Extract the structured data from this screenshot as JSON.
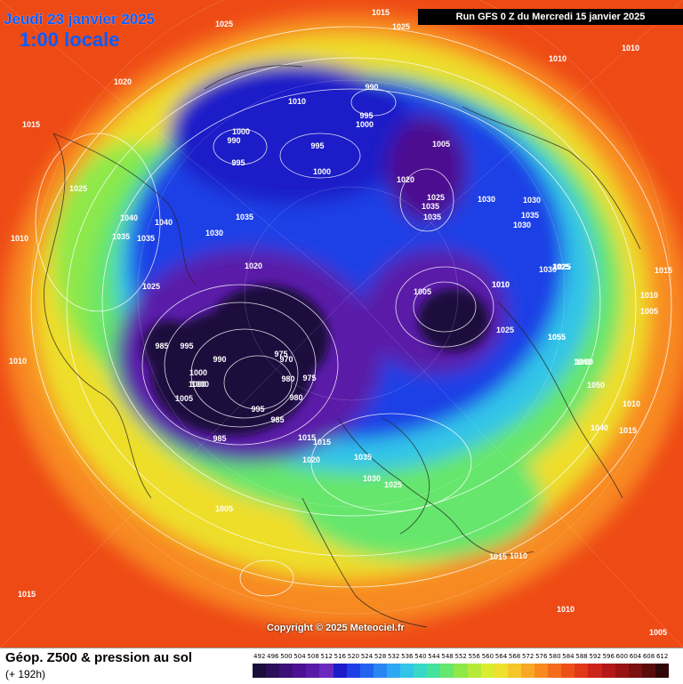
{
  "header": {
    "date": "Jeudi 23 janvier 2025",
    "local_time": "1:00 locale",
    "run": "Run GFS 0 Z du Mercredi 15 janvier 2025"
  },
  "copyright": "Copyright © 2025 Meteociel.fr",
  "footer": {
    "title": "Géop. Z500 & pression au sol",
    "subtitle": "(+ 192h)"
  },
  "scale": {
    "labels": [
      "492",
      "496",
      "500",
      "504",
      "508",
      "512",
      "516",
      "520",
      "524",
      "528",
      "532",
      "536",
      "540",
      "544",
      "548",
      "552",
      "556",
      "560",
      "564",
      "568",
      "572",
      "576",
      "580",
      "584",
      "588",
      "592",
      "596",
      "600",
      "604",
      "608",
      "612"
    ],
    "colors": [
      "#1a0f3c",
      "#2b0f5a",
      "#3d0f78",
      "#4d1090",
      "#5a1aa8",
      "#6a2ac0",
      "#1c1cc8",
      "#1f3fe6",
      "#2462f0",
      "#2a86f5",
      "#2fa8f3",
      "#33c4e8",
      "#38d8c8",
      "#44e29c",
      "#66e66c",
      "#8ee848",
      "#b6ea38",
      "#d8ec30",
      "#eee02c",
      "#f6c628",
      "#f8a824",
      "#f88a20",
      "#f46c1c",
      "#ec5018",
      "#e03818",
      "#cc2418",
      "#b41818",
      "#981414",
      "#7c1010",
      "#5a0c0c",
      "#300808"
    ]
  },
  "pressure_labels": [
    "1015",
    "1025",
    "1015",
    "1010",
    "1020",
    "1015",
    "1005",
    "1010",
    "1000",
    "990",
    "995",
    "995",
    "1000",
    "990",
    "1000",
    "995",
    "1005",
    "1020",
    "1035",
    "1035",
    "1030",
    "1030",
    "1035",
    "1025",
    "1040",
    "1035",
    "1040",
    "1030",
    "1035",
    "1035",
    "1020",
    "1025",
    "1030",
    "1025",
    "1030",
    "1010",
    "1055",
    "1010",
    "1005",
    "1015",
    "1000",
    "995",
    "1000",
    "985",
    "985",
    "990",
    "1000",
    "1005",
    "995",
    "975",
    "970",
    "975",
    "980",
    "980",
    "985",
    "1015",
    "1020",
    "1015",
    "1035",
    "1030",
    "1025",
    "1025",
    "1005",
    "1010",
    "1025",
    "1010",
    "1025",
    "1025",
    "1010",
    "1010",
    "1050",
    "1050",
    "1040",
    "1015",
    "1010",
    "1055",
    "1040",
    "1005",
    "1010",
    "1015",
    "1010"
  ],
  "map_shading": {
    "regions": [
      {
        "name": "outer",
        "color": "#f04a14"
      },
      {
        "name": "orange",
        "color": "#f88a20"
      },
      {
        "name": "yellow",
        "color": "#eede2c"
      },
      {
        "name": "green",
        "color": "#66e66c"
      },
      {
        "name": "cyan",
        "color": "#33c4e8"
      },
      {
        "name": "blue",
        "color": "#1f3fe6"
      },
      {
        "name": "purple",
        "color": "#5a1aa8"
      },
      {
        "name": "dark",
        "color": "#1a0f3c"
      }
    ]
  }
}
